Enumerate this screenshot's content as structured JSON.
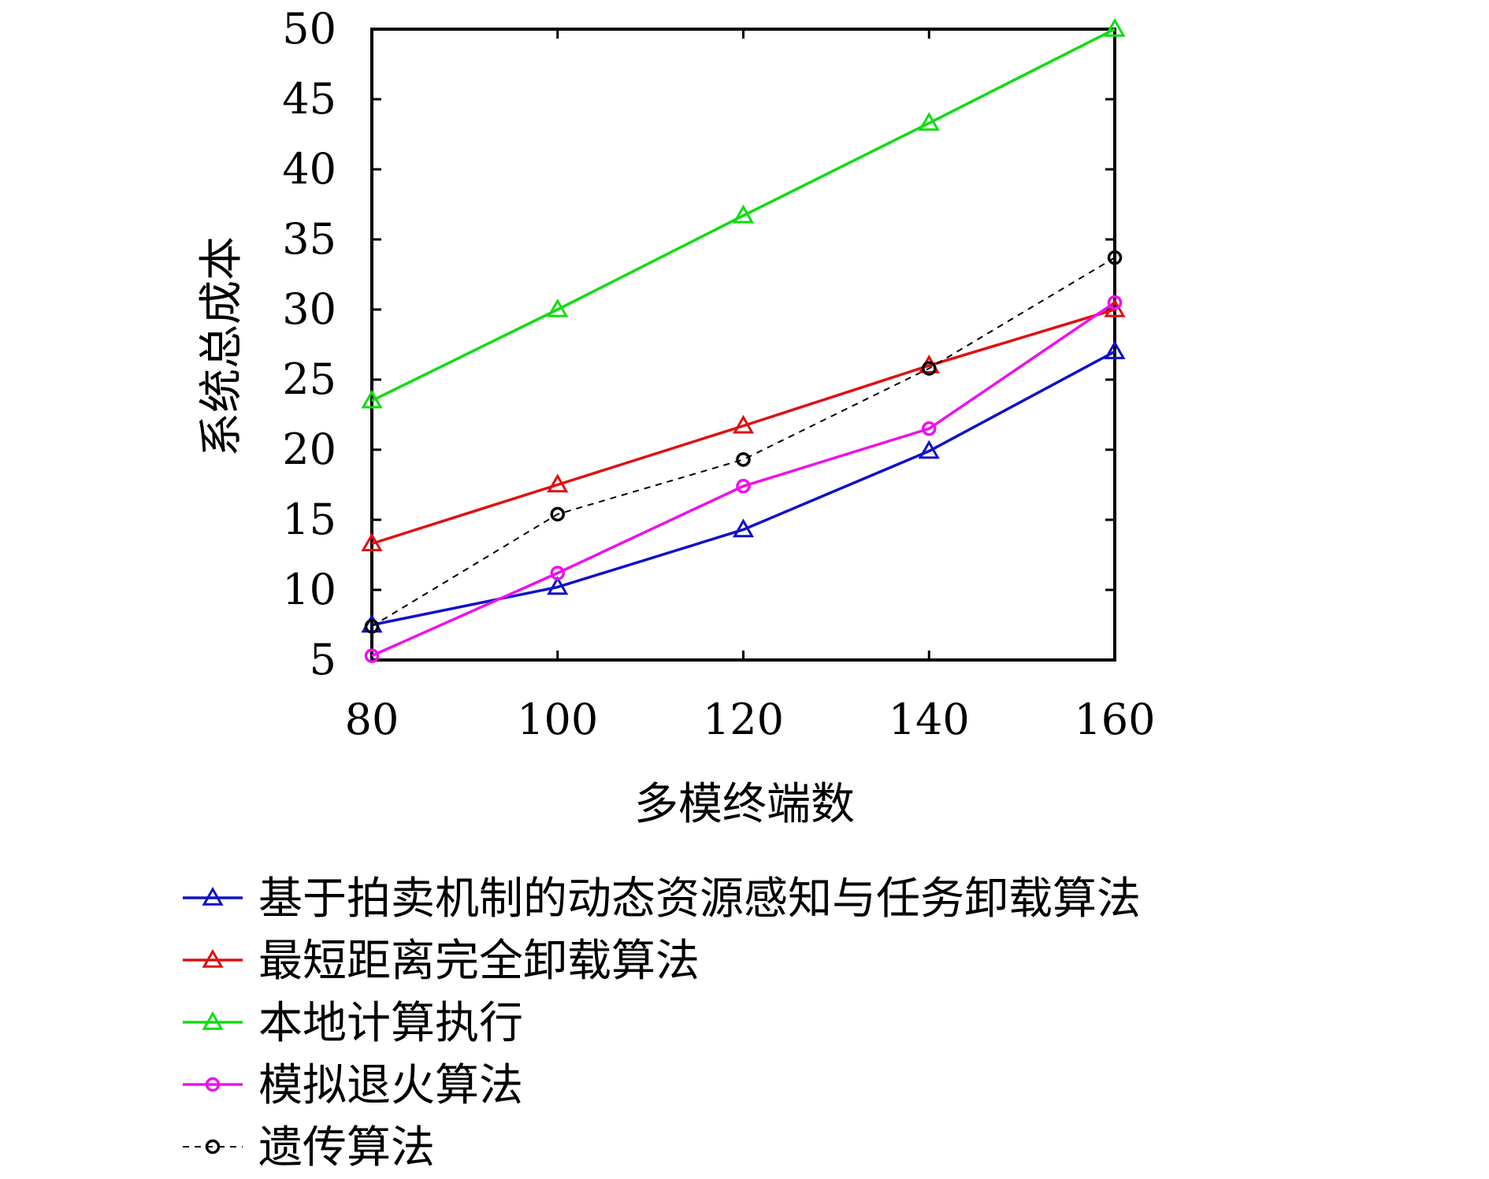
{
  "chart_data": {
    "type": "line",
    "xlabel": "多模终端数",
    "ylabel": "系统总成本",
    "x": [
      80,
      100,
      120,
      140,
      160
    ],
    "xlim": [
      80,
      160
    ],
    "ylim": [
      5,
      50
    ],
    "xticks": [
      "80",
      "100",
      "120",
      "140",
      "160"
    ],
    "yticks": [
      "5",
      "10",
      "15",
      "20",
      "25",
      "30",
      "35",
      "40",
      "45",
      "50"
    ],
    "grid": false,
    "legend_position": "bottom",
    "series": [
      {
        "name": "基于拍卖机制的动态资源感知与任务卸载算法",
        "values": [
          7.5,
          10.2,
          14.3,
          19.9,
          27.0
        ],
        "color": "#1010c8",
        "marker": "triangle",
        "dashed": false
      },
      {
        "name": "最短距离完全卸载算法",
        "values": [
          13.3,
          17.5,
          21.7,
          26.0,
          30.0
        ],
        "color": "#e01010",
        "marker": "triangle",
        "dashed": false
      },
      {
        "name": "本地计算执行",
        "values": [
          23.5,
          30.0,
          36.7,
          43.3,
          50.0
        ],
        "color": "#10dd10",
        "marker": "triangle",
        "dashed": false
      },
      {
        "name": "模拟退火算法",
        "values": [
          5.3,
          11.2,
          17.4,
          21.5,
          30.5
        ],
        "color": "#ee10ee",
        "marker": "circle",
        "dashed": false
      },
      {
        "name": "遗传算法",
        "values": [
          7.4,
          15.4,
          19.3,
          25.8,
          33.7
        ],
        "color": "#000000",
        "marker": "circle",
        "dashed": true
      }
    ]
  }
}
